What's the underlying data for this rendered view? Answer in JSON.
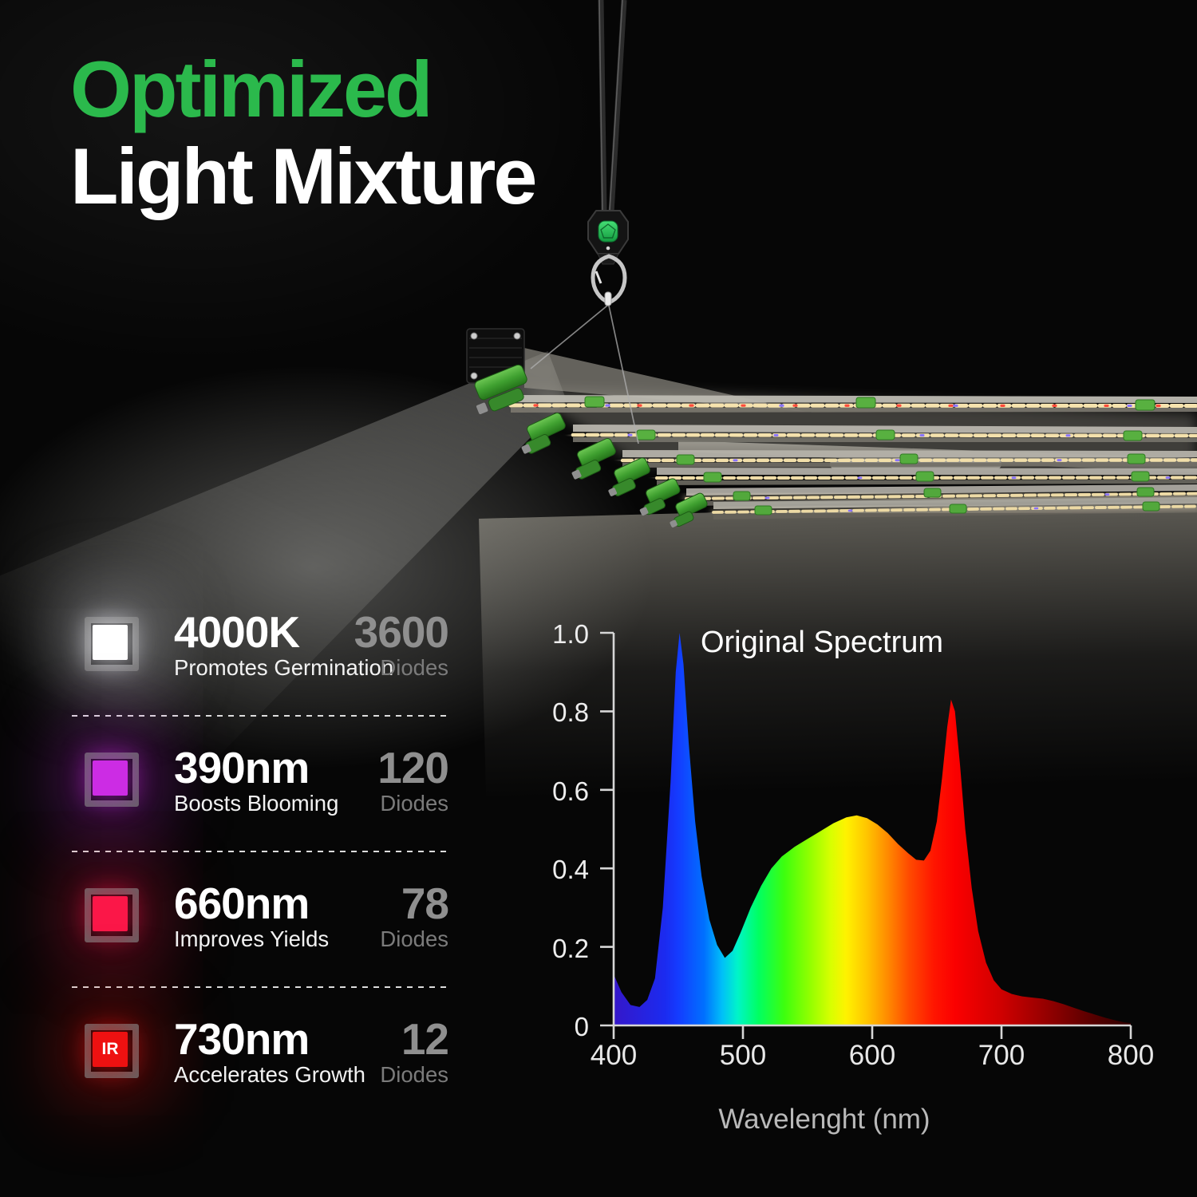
{
  "title": {
    "line1": "Optimized",
    "line2": "Light Mixture",
    "accent_color": "#2bb94c",
    "secondary_color": "#ffffff"
  },
  "fixture": {
    "hanger_button_color": "#2ec158",
    "led_strip_color": "#ffe9b8",
    "clip_color": "#55b23f",
    "red_diode_color": "#ff4a3a",
    "blue_diode_color": "#8a74ff"
  },
  "legend": {
    "items": [
      {
        "value": "4000K",
        "description": "Promotes Germination",
        "count": "3600",
        "unit": "Diodes",
        "swatch_color": "#ffffff",
        "glow_color": "#e9e9f2",
        "swatch_label": ""
      },
      {
        "value": "390nm",
        "description": "Boosts Blooming",
        "count": "120",
        "unit": "Diodes",
        "swatch_color": "#cc2ce4",
        "glow_color": "#b724cf",
        "swatch_label": ""
      },
      {
        "value": "660nm",
        "description": "Improves Yields",
        "count": "78",
        "unit": "Diodes",
        "swatch_color": "#fb1748",
        "glow_color": "#e01341",
        "swatch_label": ""
      },
      {
        "value": "730nm",
        "description": "Accelerates Growth",
        "count": "12",
        "unit": "Diodes",
        "swatch_color": "#ee1111",
        "glow_color": "#d80f0f",
        "swatch_label": "IR"
      }
    ]
  },
  "chart_data": {
    "type": "area",
    "title": "Original Spectrum",
    "xlabel": "Wavelenght (nm)",
    "ylabel": "",
    "xlim": [
      400,
      800
    ],
    "ylim": [
      0,
      1.0
    ],
    "xticks": [
      400,
      500,
      600,
      700,
      800
    ],
    "yticks": [
      1.0,
      0.8,
      0.6,
      0.4,
      0.2,
      0
    ],
    "xtick_labels": [
      "400",
      "500",
      "600",
      "700",
      "800"
    ],
    "ytick_labels": [
      "1.0",
      "0.8",
      "0.6",
      "0.4",
      "0.2",
      "0"
    ],
    "grid": false,
    "legend_position": "none",
    "fill": "spectral-gradient",
    "series_name": "Original Spectrum",
    "points": [
      [
        400,
        0.13
      ],
      [
        406,
        0.085
      ],
      [
        413,
        0.052
      ],
      [
        420,
        0.047
      ],
      [
        426,
        0.065
      ],
      [
        432,
        0.12
      ],
      [
        438,
        0.3
      ],
      [
        444,
        0.62
      ],
      [
        448,
        0.9
      ],
      [
        451,
        1.0
      ],
      [
        454,
        0.92
      ],
      [
        458,
        0.72
      ],
      [
        463,
        0.52
      ],
      [
        468,
        0.38
      ],
      [
        474,
        0.27
      ],
      [
        480,
        0.205
      ],
      [
        486,
        0.172
      ],
      [
        492,
        0.19
      ],
      [
        498,
        0.235
      ],
      [
        506,
        0.3
      ],
      [
        514,
        0.355
      ],
      [
        522,
        0.4
      ],
      [
        530,
        0.43
      ],
      [
        540,
        0.455
      ],
      [
        550,
        0.475
      ],
      [
        560,
        0.495
      ],
      [
        570,
        0.515
      ],
      [
        580,
        0.53
      ],
      [
        588,
        0.535
      ],
      [
        596,
        0.528
      ],
      [
        604,
        0.512
      ],
      [
        612,
        0.49
      ],
      [
        620,
        0.462
      ],
      [
        628,
        0.438
      ],
      [
        634,
        0.422
      ],
      [
        640,
        0.42
      ],
      [
        645,
        0.445
      ],
      [
        650,
        0.52
      ],
      [
        654,
        0.63
      ],
      [
        658,
        0.76
      ],
      [
        661,
        0.83
      ],
      [
        664,
        0.8
      ],
      [
        668,
        0.66
      ],
      [
        672,
        0.5
      ],
      [
        677,
        0.35
      ],
      [
        682,
        0.24
      ],
      [
        688,
        0.16
      ],
      [
        694,
        0.115
      ],
      [
        700,
        0.092
      ],
      [
        708,
        0.08
      ],
      [
        716,
        0.074
      ],
      [
        724,
        0.071
      ],
      [
        732,
        0.068
      ],
      [
        740,
        0.062
      ],
      [
        748,
        0.054
      ],
      [
        756,
        0.045
      ],
      [
        764,
        0.036
      ],
      [
        772,
        0.028
      ],
      [
        780,
        0.02
      ],
      [
        788,
        0.013
      ],
      [
        795,
        0.008
      ],
      [
        800,
        0.006
      ]
    ]
  }
}
